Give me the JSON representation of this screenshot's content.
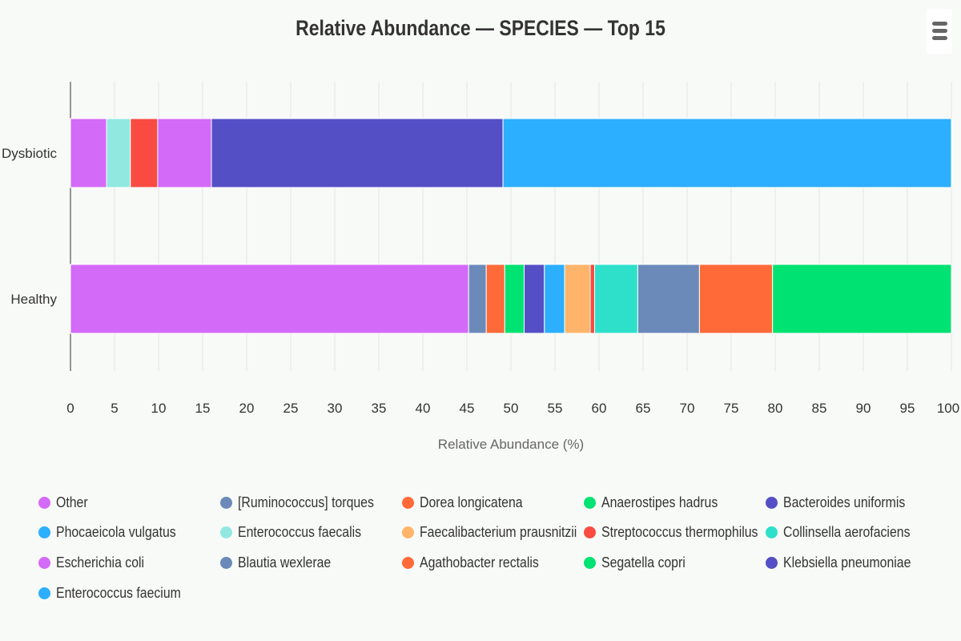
{
  "title": "Relative Abundance — SPECIES — Top 15",
  "menu_icon": "hamburger-menu-icon",
  "chart_data": {
    "type": "bar",
    "orientation": "horizontal",
    "stacked": true,
    "title": "Relative Abundance — SPECIES — Top 15",
    "xlabel": "Relative Abundance (%)",
    "ylabel": "",
    "xlim": [
      0,
      100
    ],
    "xticks": [
      0,
      5,
      10,
      15,
      20,
      25,
      30,
      35,
      40,
      45,
      50,
      55,
      60,
      65,
      70,
      75,
      80,
      85,
      90,
      95,
      100
    ],
    "categories": [
      "Dysbiotic",
      "Healthy"
    ],
    "grid": true,
    "legend_position": "bottom",
    "series": [
      {
        "name": "Other",
        "color": "#d46af8",
        "values": [
          4.1,
          45.2
        ]
      },
      {
        "name": "[Ruminococcus] torques",
        "color": "#6b8aba",
        "values": [
          0,
          2.0
        ]
      },
      {
        "name": "Dorea longicatena",
        "color": "#ff6a38",
        "values": [
          0,
          2.1
        ]
      },
      {
        "name": "Anaerostipes hadrus",
        "color": "#00e272",
        "values": [
          0,
          2.2
        ]
      },
      {
        "name": "Bacteroides uniformis",
        "color": "#544fc5",
        "values": [
          0,
          2.3
        ]
      },
      {
        "name": "Phocaeicola vulgatus",
        "color": "#2caffe",
        "values": [
          0,
          2.3
        ]
      },
      {
        "name": "Enterococcus faecalis",
        "color": "#91e8e1",
        "values": [
          2.7,
          0
        ]
      },
      {
        "name": "Faecalibacterium prausnitzii",
        "color": "#feb56a",
        "values": [
          0,
          2.9
        ]
      },
      {
        "name": "Streptococcus thermophilus",
        "color": "#fa4b42",
        "values": [
          3.1,
          0.5
        ]
      },
      {
        "name": "Collinsella aerofaciens",
        "color": "#2ee0ca",
        "values": [
          0,
          4.9
        ]
      },
      {
        "name": "Escherichia coli",
        "color": "#d46af8",
        "values": [
          6.1,
          0
        ]
      },
      {
        "name": "Blautia wexlerae",
        "color": "#6b8aba",
        "values": [
          0,
          7.0
        ]
      },
      {
        "name": "Agathobacter rectalis",
        "color": "#ff6a38",
        "values": [
          0,
          8.3
        ]
      },
      {
        "name": "Segatella copri",
        "color": "#00e272",
        "values": [
          0,
          20.3
        ]
      },
      {
        "name": "Klebsiella pneumoniae",
        "color": "#544fc5",
        "values": [
          33.1,
          0
        ]
      },
      {
        "name": "Enterococcus faecium",
        "color": "#2caffe",
        "values": [
          50.9,
          0
        ]
      }
    ]
  }
}
